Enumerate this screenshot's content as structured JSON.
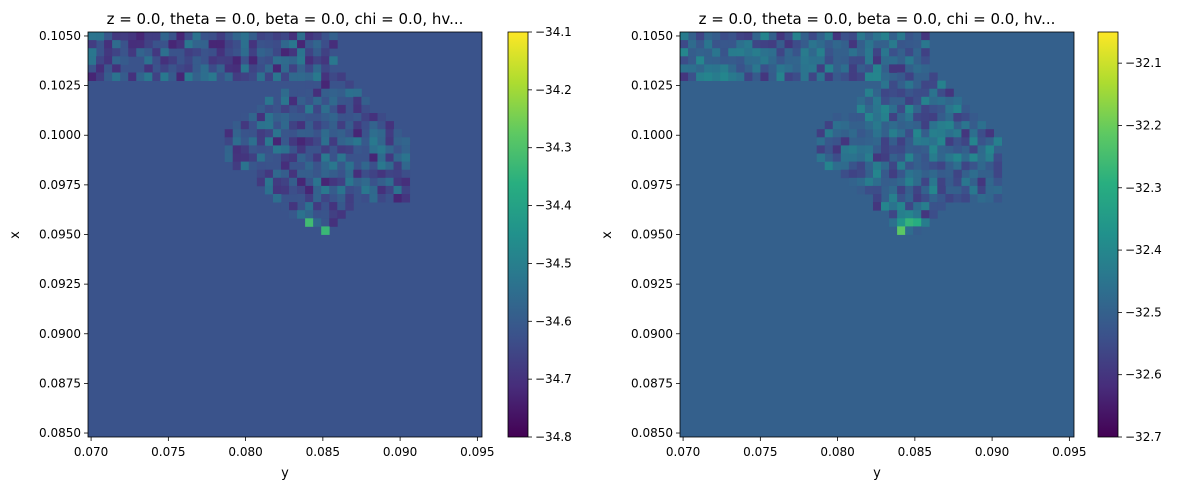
{
  "chart_data": [
    {
      "type": "heatmap",
      "title": "z = 0.0, theta = 0.0, beta = 0.0, chi = 0.0, hv...",
      "xlabel": "y",
      "ylabel": "x",
      "xlim": [
        0.0698,
        0.0953
      ],
      "ylim": [
        0.0848,
        0.1052
      ],
      "xticks": [
        "0.070",
        "0.075",
        "0.080",
        "0.085",
        "0.090",
        "0.095"
      ],
      "yticks": [
        "0.0850",
        "0.0875",
        "0.0900",
        "0.0925",
        "0.0950",
        "0.0975",
        "0.1000",
        "0.1025",
        "0.1050"
      ],
      "colorbar": {
        "vmin": -34.8,
        "vmax": -34.1,
        "ticks": [
          "−34.8",
          "−34.7",
          "−34.6",
          "−34.5",
          "−34.4",
          "−34.3",
          "−34.2",
          "−34.1"
        ]
      },
      "background_value": -34.62,
      "colormap": "viridis"
    },
    {
      "type": "heatmap",
      "title": "z = 0.0, theta = 0.0, beta = 0.0, chi = 0.0, hv...",
      "xlabel": "y",
      "ylabel": "x",
      "xlim": [
        0.0698,
        0.0953
      ],
      "ylim": [
        0.0848,
        0.1052
      ],
      "xticks": [
        "0.070",
        "0.075",
        "0.080",
        "0.085",
        "0.090",
        "0.095"
      ],
      "yticks": [
        "0.0850",
        "0.0875",
        "0.0900",
        "0.0925",
        "0.0950",
        "0.0975",
        "0.1000",
        "0.1025",
        "0.1050"
      ],
      "colorbar": {
        "vmin": -32.7,
        "vmax": -32.05,
        "ticks": [
          "−32.7",
          "−32.6",
          "−32.5",
          "−32.4",
          "−32.3",
          "−32.2",
          "−32.1"
        ]
      },
      "background_value": -32.5,
      "colormap": "viridis"
    }
  ]
}
